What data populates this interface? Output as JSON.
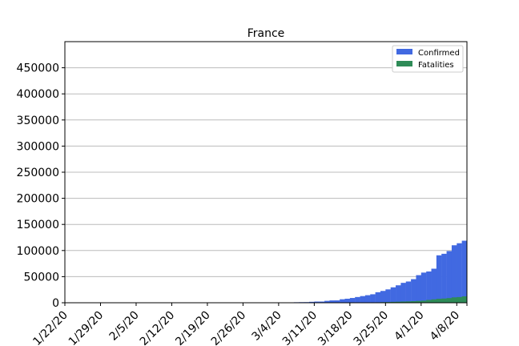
{
  "chart_data": {
    "type": "bar",
    "title": "France",
    "xlabel": "",
    "ylabel": "",
    "grid": true,
    "grid_axis": "y",
    "legend_placement": "top-right",
    "x_start": "1/22/20",
    "x_end": "4/10/20",
    "x_tick_labels": [
      "1/22/20",
      "1/29/20",
      "2/5/20",
      "2/12/20",
      "2/19/20",
      "2/26/20",
      "3/4/20",
      "3/11/20",
      "3/18/20",
      "3/25/20",
      "4/1/20",
      "4/8/20"
    ],
    "ylim": [
      0,
      500000
    ],
    "y_ticks": [
      0,
      50000,
      100000,
      150000,
      200000,
      250000,
      300000,
      350000,
      400000,
      450000
    ],
    "series": [
      {
        "name": "Confirmed",
        "color": "#4169e1",
        "x": [
          "1/22/20",
          "1/23/20",
          "1/24/20",
          "1/25/20",
          "1/26/20",
          "1/27/20",
          "1/28/20",
          "1/29/20",
          "1/30/20",
          "1/31/20",
          "2/1/20",
          "2/2/20",
          "2/3/20",
          "2/4/20",
          "2/5/20",
          "2/6/20",
          "2/7/20",
          "2/8/20",
          "2/9/20",
          "2/10/20",
          "2/11/20",
          "2/12/20",
          "2/13/20",
          "2/14/20",
          "2/15/20",
          "2/16/20",
          "2/17/20",
          "2/18/20",
          "2/19/20",
          "2/20/20",
          "2/21/20",
          "2/22/20",
          "2/23/20",
          "2/24/20",
          "2/25/20",
          "2/26/20",
          "2/27/20",
          "2/28/20",
          "2/29/20",
          "3/1/20",
          "3/2/20",
          "3/3/20",
          "3/4/20",
          "3/5/20",
          "3/6/20",
          "3/7/20",
          "3/8/20",
          "3/9/20",
          "3/10/20",
          "3/11/20",
          "3/12/20",
          "3/13/20",
          "3/14/20",
          "3/15/20",
          "3/16/20",
          "3/17/20",
          "3/18/20",
          "3/19/20",
          "3/20/20",
          "3/21/20",
          "3/22/20",
          "3/23/20",
          "3/24/20",
          "3/25/20",
          "3/26/20",
          "3/27/20",
          "3/28/20",
          "3/29/20",
          "3/30/20",
          "3/31/20",
          "4/1/20",
          "4/2/20",
          "4/3/20",
          "4/4/20",
          "4/5/20",
          "4/6/20",
          "4/7/20",
          "4/8/20",
          "4/9/20"
        ],
        "values": [
          0,
          0,
          2,
          3,
          3,
          3,
          4,
          5,
          5,
          5,
          6,
          6,
          6,
          6,
          6,
          6,
          6,
          11,
          11,
          11,
          11,
          11,
          11,
          11,
          12,
          12,
          12,
          12,
          12,
          12,
          12,
          12,
          12,
          12,
          14,
          18,
          38,
          57,
          100,
          130,
          191,
          204,
          288,
          380,
          656,
          959,
          1136,
          1219,
          1794,
          2293,
          2291,
          3661,
          4480,
          4532,
          6683,
          7715,
          9124,
          10970,
          12758,
          14463,
          16243,
          20123,
          22622,
          25600,
          29551,
          33402,
          38105,
          40708,
          45170,
          52827,
          57749,
          59929,
          65202,
          90848,
          93773,
          98963,
          110065,
          113959,
          118783
        ]
      },
      {
        "name": "Fatalities",
        "color": "#2e8b57",
        "x": [
          "3/1/20",
          "3/2/20",
          "3/3/20",
          "3/4/20",
          "3/5/20",
          "3/6/20",
          "3/7/20",
          "3/8/20",
          "3/9/20",
          "3/10/20",
          "3/11/20",
          "3/12/20",
          "3/13/20",
          "3/14/20",
          "3/15/20",
          "3/16/20",
          "3/17/20",
          "3/18/20",
          "3/19/20",
          "3/20/20",
          "3/21/20",
          "3/22/20",
          "3/23/20",
          "3/24/20",
          "3/25/20",
          "3/26/20",
          "3/27/20",
          "3/28/20",
          "3/29/20",
          "3/30/20",
          "3/31/20",
          "4/1/20",
          "4/2/20",
          "4/3/20",
          "4/4/20",
          "4/5/20",
          "4/6/20",
          "4/7/20",
          "4/8/20",
          "4/9/20"
        ],
        "values": [
          2,
          3,
          4,
          4,
          6,
          9,
          11,
          19,
          19,
          33,
          48,
          48,
          79,
          91,
          91,
          148,
          148,
          148,
          243,
          450,
          562,
          674,
          860,
          1100,
          1331,
          1696,
          1995,
          2314,
          2606,
          3024,
          3523,
          4032,
          5387,
          6507,
          7560,
          8078,
          8911,
          10328,
          10869,
          12210
        ]
      }
    ]
  }
}
